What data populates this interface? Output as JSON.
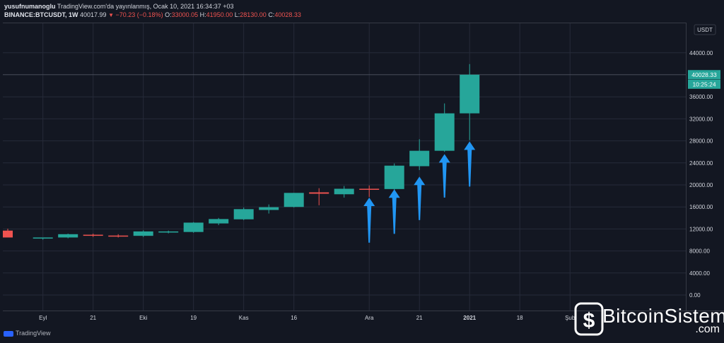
{
  "header": {
    "author": "yusufnumanoglu",
    "published": "TradingView.com'da yayınlanmış, Ocak 10, 2021 16:34:37 +03",
    "symbol": "BINANCE:BTCUSDT, 1W",
    "last": "40017.99",
    "change": "−70.23 (−0.18%)",
    "o_label": "O:",
    "o_value": "33000.05",
    "h_label": "H:",
    "h_value": "41950.00",
    "l_label": "L:",
    "l_value": "28130.00",
    "c_label": "C:",
    "c_value": "40028.33"
  },
  "price_axis": {
    "unit": "USDT",
    "last_price_label": "40028.33",
    "countdown_label": "10:25:24"
  },
  "footer": {
    "brand": "TradingView"
  },
  "watermark": {
    "name": "BitcoinSistemi",
    "suffix": ".com"
  },
  "colors": {
    "background": "#131722",
    "up": "#26a69a",
    "down": "#ef5350",
    "arrow": "#2196f3",
    "grid": "#262b39",
    "axis_text": "#d1d4dc"
  },
  "chart_data": {
    "type": "candlestick",
    "interval": "1W",
    "ylim": [
      0,
      48000
    ],
    "yticks": [
      0,
      4000,
      8000,
      12000,
      16000,
      20000,
      24000,
      28000,
      32000,
      36000,
      40000,
      44000
    ],
    "ytick_labels": [
      "0.00",
      "4000.00",
      "8000.00",
      "12000.00",
      "16000.00",
      "20000.00",
      "24000.00",
      "28000.00",
      "32000.00",
      "36000.00",
      "40000.00",
      "44000.00"
    ],
    "x_ticks": [
      {
        "label": "Eyl",
        "bar": 1,
        "bold": false
      },
      {
        "label": "21",
        "bar": 3,
        "bold": false
      },
      {
        "label": "Eki",
        "bar": 5,
        "bold": false
      },
      {
        "label": "19",
        "bar": 7,
        "bold": false
      },
      {
        "label": "Kas",
        "bar": 9,
        "bold": false
      },
      {
        "label": "16",
        "bar": 11,
        "bold": false
      },
      {
        "label": "Ara",
        "bar": 14,
        "bold": false
      },
      {
        "label": "21",
        "bar": 16,
        "bold": false
      },
      {
        "label": "2021",
        "bar": 18,
        "bold": true
      },
      {
        "label": "18",
        "bar": 20,
        "bold": false
      },
      {
        "label": "Şub",
        "bar": 22,
        "bold": false
      }
    ],
    "candles": [
      {
        "o": 11700,
        "h": 12050,
        "l": 10600,
        "c": 10450
      },
      {
        "o": 10250,
        "h": 10450,
        "l": 10050,
        "c": 10450
      },
      {
        "o": 10450,
        "h": 11150,
        "l": 10300,
        "c": 11050
      },
      {
        "o": 10950,
        "h": 11150,
        "l": 10550,
        "c": 10800
      },
      {
        "o": 10800,
        "h": 11050,
        "l": 10450,
        "c": 10650
      },
      {
        "o": 10750,
        "h": 11750,
        "l": 10550,
        "c": 11550
      },
      {
        "o": 11350,
        "h": 11700,
        "l": 11200,
        "c": 11550
      },
      {
        "o": 11450,
        "h": 13250,
        "l": 11300,
        "c": 13150
      },
      {
        "o": 13000,
        "h": 14000,
        "l": 12700,
        "c": 13800
      },
      {
        "o": 13750,
        "h": 15900,
        "l": 13600,
        "c": 15600
      },
      {
        "o": 15450,
        "h": 16450,
        "l": 14800,
        "c": 15950
      },
      {
        "o": 16000,
        "h": 18550,
        "l": 15900,
        "c": 18550
      },
      {
        "o": 18650,
        "h": 19400,
        "l": 16300,
        "c": 18400
      },
      {
        "o": 18300,
        "h": 19800,
        "l": 17700,
        "c": 19300
      },
      {
        "o": 19300,
        "h": 19900,
        "l": 17800,
        "c": 19250
      },
      {
        "o": 19250,
        "h": 23900,
        "l": 19000,
        "c": 23500
      },
      {
        "o": 23400,
        "h": 28300,
        "l": 22700,
        "c": 26200
      },
      {
        "o": 26200,
        "h": 34800,
        "l": 26000,
        "c": 33000
      },
      {
        "o": 33000,
        "h": 41950,
        "l": 28130,
        "c": 40028
      }
    ],
    "annotation_arrows": [
      {
        "bar": 14,
        "from": 9500,
        "to": 17700
      },
      {
        "bar": 15,
        "from": 11100,
        "to": 19200
      },
      {
        "bar": 16,
        "from": 13600,
        "to": 21500
      },
      {
        "bar": 17,
        "from": 17700,
        "to": 25600
      },
      {
        "bar": 18,
        "from": 19700,
        "to": 27900
      }
    ]
  }
}
